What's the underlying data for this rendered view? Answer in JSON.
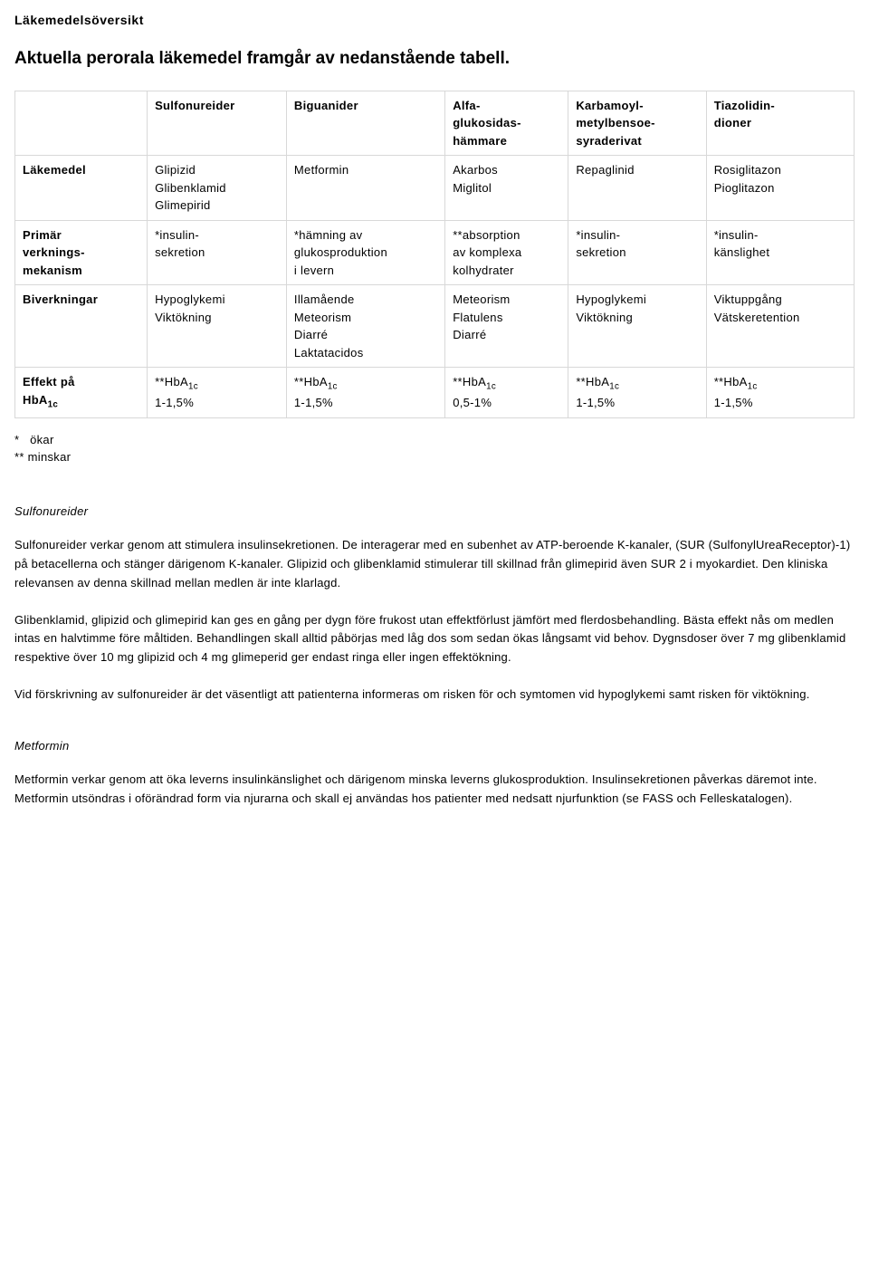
{
  "doc": {
    "title": "Läkemedelsöversikt",
    "heading": "Aktuella perorala läkemedel framgår av nedanstående tabell."
  },
  "table": {
    "columns": [
      {
        "lines": [
          ""
        ]
      },
      {
        "lines": [
          "Sulfonureider"
        ]
      },
      {
        "lines": [
          "Biguanider"
        ]
      },
      {
        "lines": [
          "Alfa-",
          "glukosidas-",
          "hämmare"
        ]
      },
      {
        "lines": [
          "Karbamoyl-",
          "metylbensoe-",
          "syraderivat"
        ]
      },
      {
        "lines": [
          "Tiazolidin-",
          "dioner"
        ]
      }
    ],
    "rows": [
      {
        "head_lines": [
          "Läkemedel"
        ],
        "cells": [
          {
            "lines": [
              "Glipizid",
              "Glibenklamid",
              "Glimepirid"
            ]
          },
          {
            "lines": [
              "Metformin"
            ]
          },
          {
            "lines": [
              "Akarbos",
              "Miglitol"
            ]
          },
          {
            "lines": [
              "Repaglinid"
            ]
          },
          {
            "lines": [
              "Rosiglitazon",
              "Pioglitazon"
            ]
          }
        ]
      },
      {
        "head_lines": [
          "Primär",
          "verknings-",
          "mekanism"
        ],
        "cells": [
          {
            "lines": [
              "*insulin-",
              "sekretion"
            ]
          },
          {
            "lines": [
              "*hämning av",
              "glukosproduktion",
              "i levern"
            ]
          },
          {
            "lines": [
              "**absorption",
              "av komplexa",
              "kolhydrater"
            ]
          },
          {
            "lines": [
              "*insulin-",
              "sekretion"
            ]
          },
          {
            "lines": [
              "*insulin-",
              "känslighet"
            ]
          }
        ]
      },
      {
        "head_lines": [
          "Biverkningar"
        ],
        "cells": [
          {
            "lines": [
              "Hypoglykemi",
              "Viktökning"
            ]
          },
          {
            "lines": [
              "Illamående",
              "Meteorism",
              "Diarré",
              "Laktatacidos"
            ]
          },
          {
            "lines": [
              "Meteorism",
              "Flatulens",
              "Diarré"
            ]
          },
          {
            "lines": [
              "Hypoglykemi",
              "Viktökning"
            ]
          },
          {
            "lines": [
              "Viktuppgång",
              "Vätskeretention"
            ]
          }
        ]
      },
      {
        "head_html": "Effekt på<br>HbA<span class=\"sub\">1c</span>",
        "cells": [
          {
            "html": "**HbA<span class=\"sub\">1c</span><br>1-1,5%"
          },
          {
            "html": "**HbA<span class=\"sub\">1c</span><br>1-1,5%"
          },
          {
            "html": "**HbA<span class=\"sub\">1c</span><br>0,5-1%"
          },
          {
            "html": "**HbA<span class=\"sub\">1c</span><br>1-1,5%"
          },
          {
            "html": "**HbA<span class=\"sub\">1c</span><br>1-1,5%"
          }
        ]
      }
    ]
  },
  "footnotes": [
    "*   ökar",
    "** minskar"
  ],
  "sections": [
    {
      "heading": "Sulfonureider",
      "paragraphs": [
        "Sulfonureider verkar genom att stimulera insulinsekretionen. De interagerar med en subenhet av ATP-beroende K-kanaler, (SUR (SulfonylUreaReceptor)-1) på betacellerna och stänger därigenom K-kanaler. Glipizid och glibenklamid stimulerar till skillnad från glimepirid även SUR 2 i myokardiet. Den kliniska relevansen av denna skillnad mellan medlen är inte klarlagd.",
        "Glibenklamid, glipizid och glimepirid kan ges en gång per dygn före frukost utan effektförlust jämfört med flerdosbehandling. Bästa effekt nås om medlen intas en halvtimme före måltiden. Behandlingen skall alltid påbörjas med låg dos som sedan ökas långsamt vid behov. Dygnsdoser över 7 mg glibenklamid respektive över 10 mg glipizid och 4 mg glimeperid ger endast ringa eller ingen effektökning.",
        "Vid förskrivning av sulfonureider är det väsentligt att patienterna informeras om risken för och symtomen vid hypoglykemi samt risken för viktökning."
      ]
    },
    {
      "heading": "Metformin",
      "paragraphs": [
        "Metformin verkar genom att öka leverns insulinkänslighet och därigenom minska leverns glukosproduktion. Insulinsekretionen påverkas däremot inte. Metformin utsöndras i oförändrad form via njurarna och skall ej användas hos patienter med nedsatt njurfunktion (se FASS och Felleskatalogen)."
      ]
    }
  ]
}
